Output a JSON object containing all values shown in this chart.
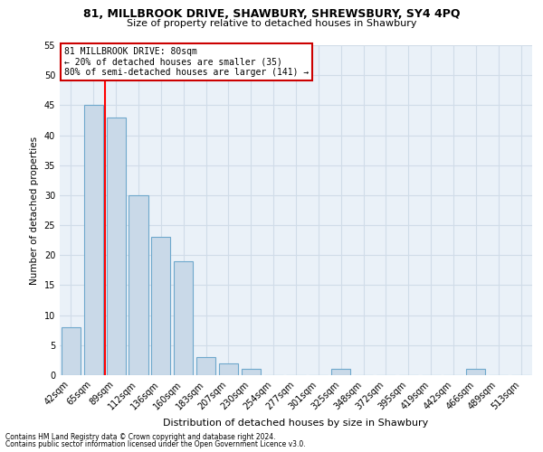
{
  "title1": "81, MILLBROOK DRIVE, SHAWBURY, SHREWSBURY, SY4 4PQ",
  "title2": "Size of property relative to detached houses in Shawbury",
  "xlabel": "Distribution of detached houses by size in Shawbury",
  "ylabel": "Number of detached properties",
  "categories": [
    "42sqm",
    "65sqm",
    "89sqm",
    "112sqm",
    "136sqm",
    "160sqm",
    "183sqm",
    "207sqm",
    "230sqm",
    "254sqm",
    "277sqm",
    "301sqm",
    "325sqm",
    "348sqm",
    "372sqm",
    "395sqm",
    "419sqm",
    "442sqm",
    "466sqm",
    "489sqm",
    "513sqm"
  ],
  "values": [
    8,
    45,
    43,
    30,
    23,
    19,
    3,
    2,
    1,
    0,
    0,
    0,
    1,
    0,
    0,
    0,
    0,
    0,
    1,
    0,
    0
  ],
  "bar_color": "#c9d9e8",
  "bar_edge_color": "#6ea8cc",
  "grid_color": "#d0dce8",
  "background_color": "#eaf1f8",
  "red_line_x": 1.5,
  "annotation_text": "81 MILLBROOK DRIVE: 80sqm\n← 20% of detached houses are smaller (35)\n80% of semi-detached houses are larger (141) →",
  "annotation_box_color": "#ffffff",
  "annotation_box_edge": "#cc0000",
  "footnote1": "Contains HM Land Registry data © Crown copyright and database right 2024.",
  "footnote2": "Contains public sector information licensed under the Open Government Licence v3.0.",
  "ylim": [
    0,
    55
  ],
  "yticks": [
    0,
    5,
    10,
    15,
    20,
    25,
    30,
    35,
    40,
    45,
    50,
    55
  ]
}
